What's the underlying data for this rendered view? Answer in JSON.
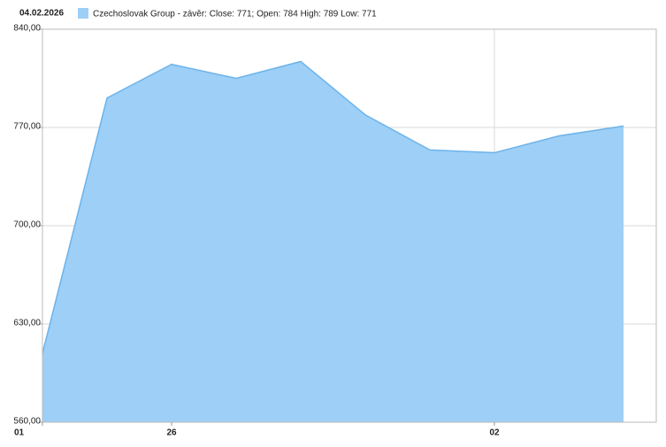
{
  "chart_data": {
    "type": "area",
    "date": "04.02.2026",
    "categories": [
      "01",
      null,
      "26",
      null,
      null,
      null,
      null,
      "02",
      null,
      null
    ],
    "series": [
      {
        "name": "Czechoslovak Group - závěr: Close: 771; Open: 784 High: 789 Low: 771",
        "color": "#9dcff7",
        "line_color": "#6db3e9",
        "values": [
          609,
          791,
          815,
          805,
          817,
          779,
          754,
          752,
          764,
          771
        ]
      }
    ],
    "ylim": [
      560,
      840
    ],
    "yticks": [
      {
        "value": 560,
        "label": "560,00"
      },
      {
        "value": 630,
        "label": "630,00"
      },
      {
        "value": 700,
        "label": "700,00"
      },
      {
        "value": 770,
        "label": "770,00"
      },
      {
        "value": 840,
        "label": "840,00"
      }
    ],
    "grid": true
  }
}
